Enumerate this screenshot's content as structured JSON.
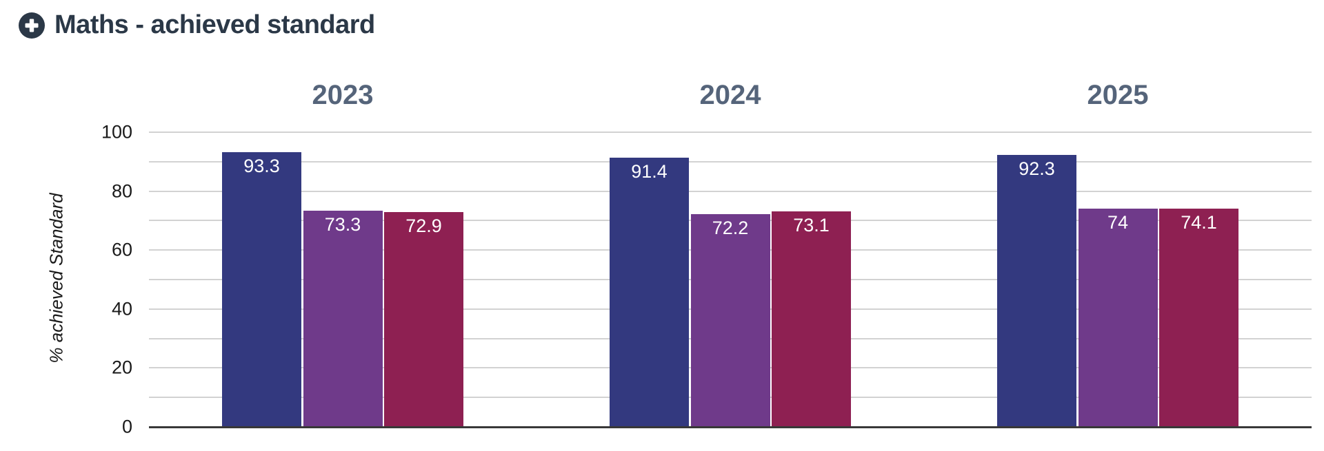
{
  "header": {
    "icon": "plus-circle-icon"
  },
  "colors": {
    "title": "#2b3847",
    "facet_title": "#55647a",
    "tick_label": "#1a1a1a",
    "axis_line": "#383838",
    "gridline": "#d2d2d2",
    "bar_label": "#ffffff",
    "icon_plus": "#ffffff"
  },
  "chart_data": {
    "type": "bar",
    "title": "Maths - achieved standard",
    "xlabel": "",
    "ylabel": "% achieved Standard",
    "ylim": [
      0,
      100
    ],
    "yticks": [
      0,
      20,
      40,
      60,
      80,
      100
    ],
    "gridline_step": 10,
    "grid": true,
    "legend_position": "none",
    "facets": [
      "2023",
      "2024",
      "2025"
    ],
    "series": [
      {
        "color": "#33397f",
        "values": [
          93.3,
          91.4,
          92.3
        ]
      },
      {
        "color": "#6f3a8a",
        "values": [
          73.3,
          72.2,
          74
        ]
      },
      {
        "color": "#8e2052",
        "values": [
          72.9,
          73.1,
          74.1
        ]
      }
    ]
  }
}
